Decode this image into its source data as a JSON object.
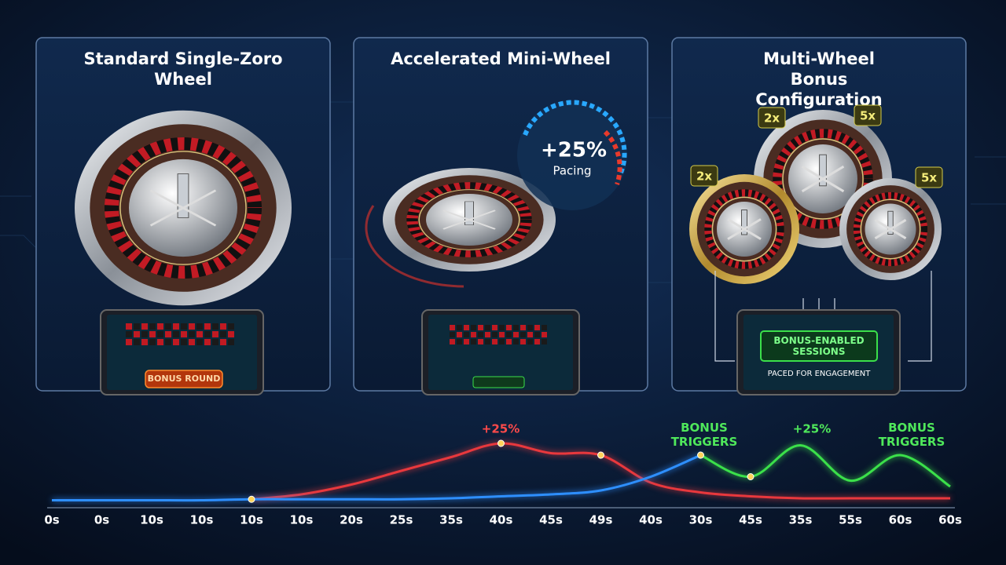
{
  "panels": [
    {
      "title": "Standard Single-Zoro Wheel",
      "button": "BONUS ROUND"
    },
    {
      "title": "Accelerated Mini-Wheel",
      "badge_value": "+25%",
      "badge_label": "Pacing"
    },
    {
      "title": "Multi-Wheel Bonus Configuration",
      "multipliers": [
        "2x",
        "5x",
        "2x",
        "5x"
      ],
      "screen_title": "BONUS-ENABLED SESSIONS",
      "screen_subtitle": "PACED FOR ENGAGEMENT"
    }
  ],
  "chart_data": {
    "type": "line",
    "categories": [
      "0s",
      "0s",
      "10s",
      "10s",
      "10s",
      "10s",
      "20s",
      "25s",
      "35s",
      "40s",
      "45s",
      "49s",
      "40s",
      "30s",
      "45s",
      "35s",
      "55s",
      "60s",
      "60s"
    ],
    "ylim": [
      0,
      100
    ],
    "series": [
      {
        "color": "#e8383d",
        "values": [
          null,
          null,
          null,
          null,
          7,
          12,
          22,
          36,
          50,
          64,
          54,
          52,
          24,
          14,
          10,
          8,
          8,
          8,
          8
        ]
      },
      {
        "color": "#2e8fff",
        "values": [
          6,
          6,
          6,
          6,
          7,
          7,
          7,
          7,
          8,
          10,
          12,
          16,
          30,
          52,
          null,
          null,
          null,
          null,
          null
        ]
      },
      {
        "color": "#3be04a",
        "values": [
          null,
          null,
          null,
          null,
          null,
          null,
          null,
          null,
          null,
          null,
          null,
          null,
          null,
          52,
          30,
          62,
          26,
          52,
          20
        ]
      }
    ],
    "annotations": [
      "+25%",
      "BONUS TRIGGERS",
      "+25%",
      "BONUS TRIGGERS"
    ]
  }
}
